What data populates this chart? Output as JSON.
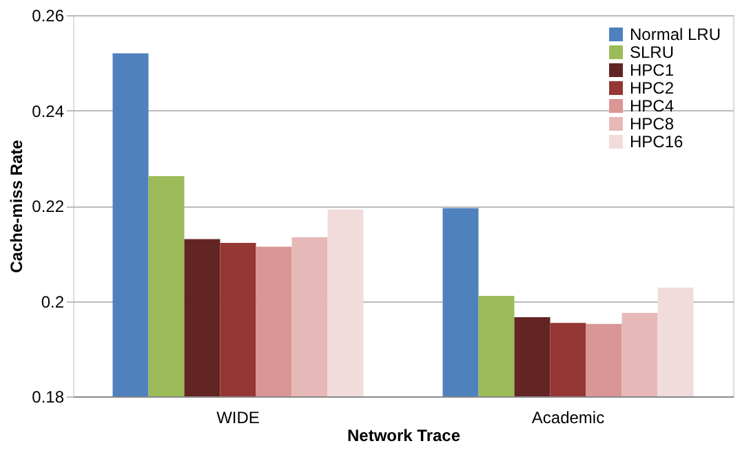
{
  "chart_data": {
    "type": "bar",
    "xlabel": "Network Trace",
    "ylabel": "Cache-miss Rate",
    "categories": [
      "WIDE",
      "Academic"
    ],
    "series": [
      {
        "name": "Normal LRU",
        "color": "#4f81bd",
        "values": [
          0.252,
          0.2195
        ]
      },
      {
        "name": "SLRU",
        "color": "#9bbb59",
        "values": [
          0.2262,
          0.2011
        ]
      },
      {
        "name": "HPC1",
        "color": "#632523",
        "values": [
          0.213,
          0.1966
        ]
      },
      {
        "name": "HPC2",
        "color": "#953735",
        "values": [
          0.2122,
          0.1954
        ]
      },
      {
        "name": "HPC4",
        "color": "#d99694",
        "values": [
          0.2114,
          0.1952
        ]
      },
      {
        "name": "HPC8",
        "color": "#e6b9b8",
        "values": [
          0.2134,
          0.1975
        ]
      },
      {
        "name": "HPC16",
        "color": "#f2dcdb",
        "values": [
          0.2192,
          0.2028
        ]
      }
    ],
    "ylim": [
      0.18,
      0.26
    ],
    "yticks": [
      0.18,
      {
        "value": 0.2,
        "label": "0.2"
      },
      0.22,
      0.24,
      0.26
    ],
    "grid": "y",
    "legend": "top right"
  }
}
